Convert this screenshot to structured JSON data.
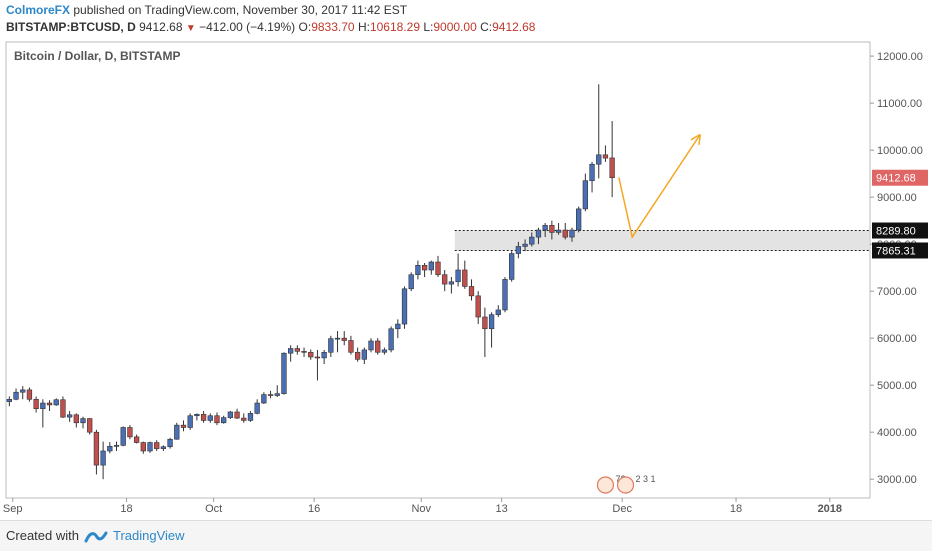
{
  "header": {
    "author": "ColmoreFX",
    "published_text": "published on TradingView.com, November 30, 2017 11:42 EST",
    "symbol": "BITSTAMP:BTCUSD, D",
    "last": "9412.68",
    "change": "−412.00 (−4.19%)",
    "open_label": "O:",
    "open": "9833.70",
    "high_label": "H:",
    "high": "10618.29",
    "low_label": "L:",
    "low": "9000.00",
    "close_label": "C:",
    "close": "9412.68"
  },
  "footer": {
    "created_with": "Created with",
    "brand": "TradingView"
  },
  "colors": {
    "up": "#4a6fb5",
    "down": "#c0504d",
    "arrow": "#f5a623",
    "zone": "#d9d9d9",
    "price_tag": "#e06666"
  },
  "chart_data": {
    "type": "candlestick",
    "title": "Bitcoin / Dollar, D, BITSTAMP",
    "ylim": [
      2600,
      12300
    ],
    "y_ticks": [
      "12000.00",
      "11000.00",
      "10000.00",
      "9000.00",
      "8000.00",
      "7000.00",
      "6000.00",
      "5000.00",
      "4000.00",
      "3000.00"
    ],
    "x_ticks": [
      {
        "label": "Sep",
        "date": "2017-09-01"
      },
      {
        "label": "18",
        "date": "2017-09-18"
      },
      {
        "label": "Oct",
        "date": "2017-10-01"
      },
      {
        "label": "16",
        "date": "2017-10-16"
      },
      {
        "label": "Nov",
        "date": "2017-11-01"
      },
      {
        "label": "13",
        "date": "2017-11-13"
      },
      {
        "label": "Dec",
        "date": "2017-12-01"
      },
      {
        "label": "18",
        "date": "2017-12-18"
      },
      {
        "label": "2018",
        "date": "2018-01-01"
      }
    ],
    "date_range": [
      "2017-08-31",
      "2018-01-07"
    ],
    "ohlc_columns": [
      "open",
      "high",
      "low",
      "close"
    ],
    "candles": [
      [
        4650,
        4760,
        4550,
        4700
      ],
      [
        4700,
        4930,
        4680,
        4850
      ],
      [
        4850,
        4980,
        4700,
        4900
      ],
      [
        4900,
        4950,
        4650,
        4700
      ],
      [
        4700,
        4760,
        4420,
        4500
      ],
      [
        4500,
        4700,
        4100,
        4620
      ],
      [
        4620,
        4680,
        4450,
        4580
      ],
      [
        4580,
        4720,
        4560,
        4690
      ],
      [
        4690,
        4760,
        4300,
        4320
      ],
      [
        4320,
        4450,
        4220,
        4370
      ],
      [
        4370,
        4400,
        4100,
        4200
      ],
      [
        4200,
        4330,
        4080,
        4290
      ],
      [
        4290,
        4300,
        3950,
        4000
      ],
      [
        4000,
        4050,
        3100,
        3300
      ],
      [
        3300,
        3800,
        3000,
        3600
      ],
      [
        3600,
        3790,
        3550,
        3700
      ],
      [
        3700,
        3800,
        3600,
        3720
      ],
      [
        3720,
        4120,
        3700,
        4100
      ],
      [
        4100,
        4150,
        3850,
        3900
      ],
      [
        3900,
        3950,
        3760,
        3780
      ],
      [
        3780,
        3800,
        3540,
        3600
      ],
      [
        3600,
        3800,
        3560,
        3780
      ],
      [
        3780,
        3830,
        3600,
        3650
      ],
      [
        3650,
        3720,
        3600,
        3690
      ],
      [
        3690,
        3880,
        3650,
        3850
      ],
      [
        3850,
        4200,
        3840,
        4150
      ],
      [
        4150,
        4250,
        4020,
        4100
      ],
      [
        4100,
        4400,
        4050,
        4350
      ],
      [
        4350,
        4400,
        4250,
        4380
      ],
      [
        4380,
        4450,
        4200,
        4250
      ],
      [
        4250,
        4400,
        4200,
        4350
      ],
      [
        4350,
        4420,
        4150,
        4200
      ],
      [
        4200,
        4350,
        4180,
        4310
      ],
      [
        4310,
        4450,
        4280,
        4430
      ],
      [
        4430,
        4500,
        4280,
        4300
      ],
      [
        4300,
        4400,
        4200,
        4250
      ],
      [
        4250,
        4450,
        4220,
        4400
      ],
      [
        4400,
        4700,
        4380,
        4620
      ],
      [
        4620,
        4850,
        4600,
        4800
      ],
      [
        4800,
        4880,
        4720,
        4780
      ],
      [
        4780,
        5000,
        4750,
        4820
      ],
      [
        4820,
        5700,
        4800,
        5680
      ],
      [
        5680,
        5850,
        5500,
        5780
      ],
      [
        5780,
        5850,
        5650,
        5720
      ],
      [
        5720,
        5800,
        5600,
        5700
      ],
      [
        5700,
        5760,
        5540,
        5600
      ],
      [
        5600,
        5750,
        5100,
        5580
      ],
      [
        5580,
        5750,
        5450,
        5700
      ],
      [
        5700,
        6050,
        5600,
        5990
      ],
      [
        5990,
        6150,
        5700,
        6000
      ],
      [
        6000,
        6150,
        5850,
        5950
      ],
      [
        5950,
        6050,
        5650,
        5700
      ],
      [
        5700,
        5800,
        5500,
        5550
      ],
      [
        5550,
        5800,
        5450,
        5750
      ],
      [
        5750,
        6000,
        5700,
        5940
      ],
      [
        5940,
        6000,
        5650,
        5700
      ],
      [
        5700,
        5800,
        5650,
        5750
      ],
      [
        5750,
        6250,
        5700,
        6200
      ],
      [
        6200,
        6400,
        6000,
        6300
      ],
      [
        6300,
        7100,
        6200,
        7050
      ],
      [
        7050,
        7400,
        7000,
        7350
      ],
      [
        7350,
        7650,
        7250,
        7550
      ],
      [
        7550,
        7600,
        7300,
        7450
      ],
      [
        7450,
        7650,
        7350,
        7620
      ],
      [
        7620,
        7750,
        7300,
        7350
      ],
      [
        7350,
        7450,
        7000,
        7150
      ],
      [
        7150,
        7300,
        6950,
        7200
      ],
      [
        7200,
        7800,
        7100,
        7450
      ],
      [
        7450,
        7650,
        7050,
        7100
      ],
      [
        7100,
        7250,
        6800,
        6900
      ],
      [
        6900,
        7000,
        6300,
        6450
      ],
      [
        6450,
        6650,
        5600,
        6200
      ],
      [
        6200,
        6550,
        5800,
        6500
      ],
      [
        6500,
        6700,
        6450,
        6600
      ],
      [
        6600,
        7300,
        6550,
        7250
      ],
      [
        7250,
        7850,
        7200,
        7800
      ],
      [
        7800,
        8050,
        7700,
        7950
      ],
      [
        7950,
        8100,
        7850,
        8000
      ],
      [
        8000,
        8250,
        7950,
        8150
      ],
      [
        8150,
        8350,
        8000,
        8300
      ],
      [
        8300,
        8450,
        8150,
        8400
      ],
      [
        8400,
        8500,
        8100,
        8250
      ],
      [
        8250,
        8450,
        8200,
        8300
      ],
      [
        8300,
        8450,
        8100,
        8150
      ],
      [
        8150,
        8350,
        8050,
        8300
      ],
      [
        8300,
        8800,
        8250,
        8750
      ],
      [
        8750,
        9500,
        8700,
        9350
      ],
      [
        9350,
        9750,
        9100,
        9700
      ],
      [
        9700,
        11400,
        9400,
        9900
      ],
      [
        9900,
        10100,
        9750,
        9830
      ],
      [
        9833.7,
        10618.29,
        9000,
        9412.68
      ]
    ],
    "levels": [
      {
        "label": "8289.80",
        "value": 8289.8
      },
      {
        "label": "7865.31",
        "value": 7865.31
      }
    ],
    "current_price": {
      "label": "9412.68",
      "value": 9412.68
    },
    "projection": [
      {
        "date": "2017-11-30",
        "value": 9420
      },
      {
        "date": "2017-12-02",
        "value": 8150
      },
      {
        "date": "2017-12-12",
        "value": 10300
      }
    ],
    "event_badges": [
      {
        "date": "2017-11-28",
        "text": "7?"
      },
      {
        "date": "2017-12-01",
        "text": "2 3 1"
      }
    ]
  }
}
